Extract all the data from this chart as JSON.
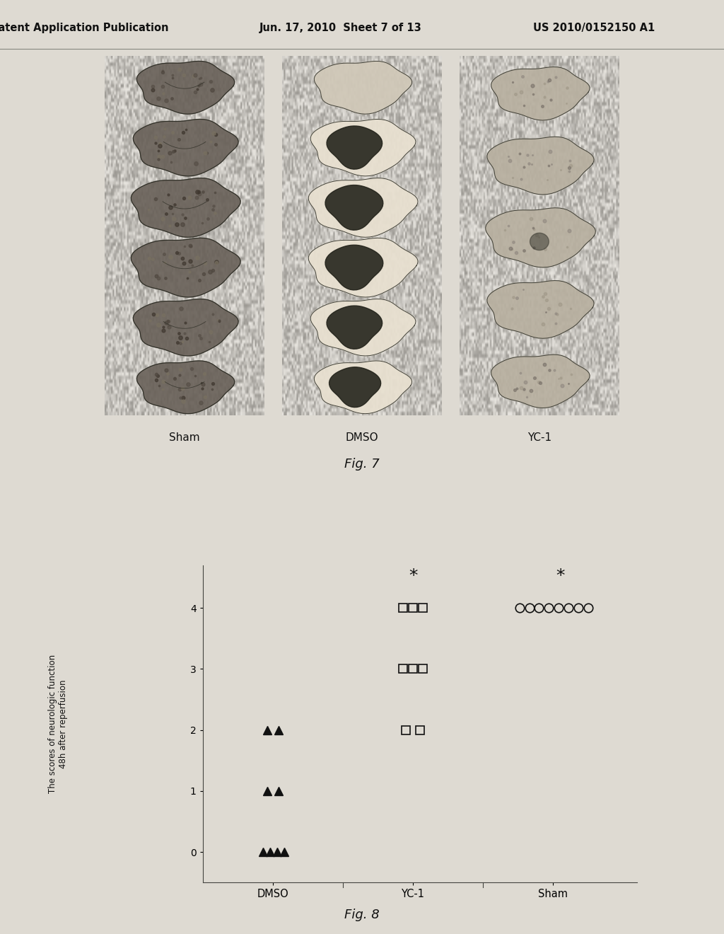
{
  "header_left": "Patent Application Publication",
  "header_mid": "Jun. 17, 2010  Sheet 7 of 13",
  "header_right": "US 2010/0152150 A1",
  "fig7_label": "Fig. 7",
  "fig8_label": "Fig. 8",
  "panel_labels": [
    "Sham",
    "DMSO",
    "YC-1"
  ],
  "fig8_ylabel": "The scores of neurologic function\n48h after reperfusion",
  "fig8_xlabel_groups": [
    "DMSO",
    "YC-1",
    "Sham"
  ],
  "fig8_yticks": [
    0,
    1,
    2,
    3,
    4
  ],
  "background_color": "#d8d4cc",
  "page_bg": "#e8e4dc"
}
